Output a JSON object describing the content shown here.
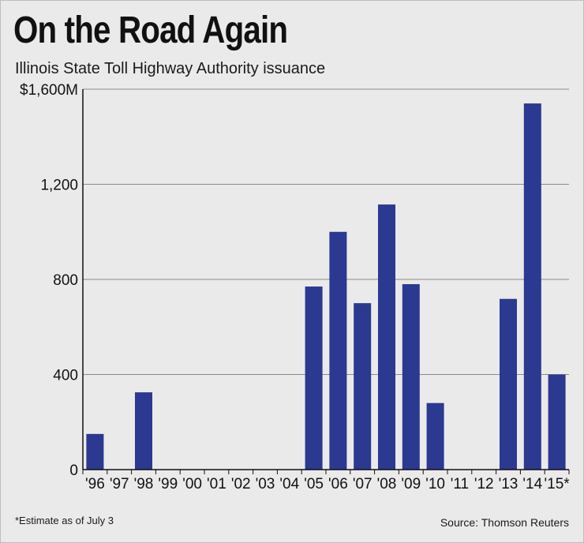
{
  "header": {
    "title": "On the Road Again",
    "subtitle": "Illinois State Toll Highway Authority issuance"
  },
  "footer": {
    "note": "*Estimate as of July 3",
    "source": "Source: Thomson Reuters"
  },
  "colors": {
    "bar": "#2b3990",
    "grid": "#8a8a8a",
    "axis": "#111111",
    "background": "#eaeaea"
  },
  "chart_data": {
    "type": "bar",
    "title": "On the Road Again",
    "subtitle": "Illinois State Toll Highway Authority issuance",
    "xlabel": "",
    "ylabel": "",
    "ylim": [
      0,
      1600
    ],
    "yticks": [
      0,
      400,
      800,
      1200,
      1600
    ],
    "ytick_labels": [
      "0",
      "400",
      "800",
      "1,200",
      "$1,600M"
    ],
    "grid": true,
    "legend": "none",
    "categories": [
      "'96",
      "'97",
      "'98",
      "'99",
      "'00",
      "'01",
      "'02",
      "'03",
      "'04",
      "'05",
      "'06",
      "'07",
      "'08",
      "'09",
      "'10",
      "'11",
      "'12",
      "'13",
      "'14",
      "'15*"
    ],
    "values": [
      150,
      0,
      325,
      0,
      0,
      0,
      0,
      0,
      0,
      770,
      1000,
      700,
      1115,
      780,
      280,
      0,
      0,
      718,
      1540,
      400
    ]
  }
}
